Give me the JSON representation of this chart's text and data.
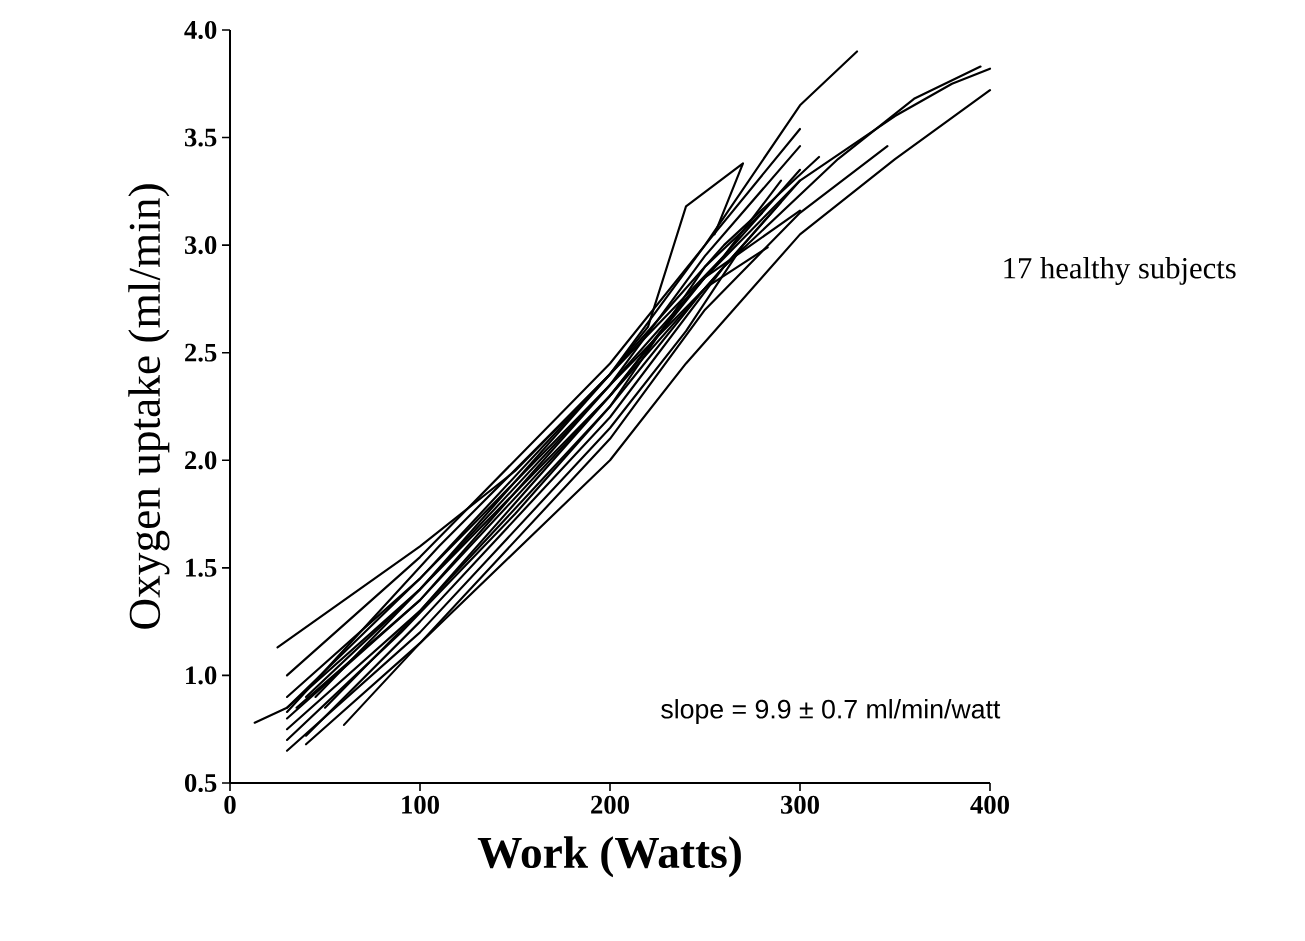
{
  "chart_data": {
    "type": "line",
    "xlabel": "Work (Watts)",
    "ylabel": "Oxygen uptake (ml/min)",
    "annotations": [
      "17 healthy subjects",
      "slope = 9.9 ± 0.7 ml/min/watt"
    ],
    "xlim": [
      0,
      400
    ],
    "ylim": [
      0.5,
      4.0
    ],
    "xticks": [
      0,
      100,
      200,
      300,
      400
    ],
    "yticks": [
      {
        "value": 0.5,
        "label": "0.5"
      },
      {
        "value": 1.0,
        "label": "1.0"
      },
      {
        "value": 1.5,
        "label": "1.5"
      },
      {
        "value": 2.0,
        "label": "2.0"
      },
      {
        "value": 2.5,
        "label": "2.5"
      },
      {
        "value": 3.0,
        "label": "3.0"
      },
      {
        "value": 3.5,
        "label": "3.5"
      },
      {
        "value": 4.0,
        "label": "4.0"
      }
    ],
    "series": [
      {
        "color": "#000000",
        "x": [
          25,
          100,
          150,
          200,
          250,
          300,
          330
        ],
        "values": [
          1.13,
          1.6,
          1.95,
          2.4,
          3.0,
          3.65,
          3.9
        ]
      },
      {
        "color": "#000000",
        "x": [
          30,
          100,
          200,
          220,
          240,
          270,
          255
        ],
        "values": [
          0.9,
          1.45,
          2.4,
          2.62,
          3.18,
          3.38,
          3.05
        ]
      },
      {
        "color": "#000000",
        "x": [
          30,
          100,
          200,
          250,
          300
        ],
        "values": [
          1.0,
          1.55,
          2.45,
          3.0,
          3.54
        ]
      },
      {
        "color": "#000000",
        "x": [
          30,
          100,
          200,
          250,
          300
        ],
        "values": [
          0.85,
          1.45,
          2.35,
          2.95,
          3.46
        ]
      },
      {
        "color": "#000000",
        "x": [
          40,
          100,
          200,
          260,
          310
        ],
        "values": [
          0.9,
          1.4,
          2.4,
          3.0,
          3.41
        ]
      },
      {
        "color": "#000000",
        "x": [
          30,
          100,
          200,
          250,
          300,
          350,
          380,
          400
        ],
        "values": [
          0.75,
          1.3,
          2.3,
          2.85,
          3.3,
          3.6,
          3.75,
          3.82
        ]
      },
      {
        "color": "#000000",
        "x": [
          40,
          100,
          200,
          260,
          320,
          360,
          395
        ],
        "values": [
          0.72,
          1.25,
          2.2,
          2.9,
          3.4,
          3.68,
          3.83
        ]
      },
      {
        "color": "#000000",
        "x": [
          40,
          100,
          200,
          240,
          300,
          350,
          400
        ],
        "values": [
          0.68,
          1.15,
          2.0,
          2.45,
          3.05,
          3.4,
          3.72
        ]
      },
      {
        "color": "#000000",
        "x": [
          30,
          100,
          200,
          250,
          300
        ],
        "values": [
          0.8,
          1.35,
          2.35,
          2.85,
          3.16
        ]
      },
      {
        "color": "#000000",
        "x": [
          13,
          30,
          100,
          200,
          250,
          283
        ],
        "values": [
          0.78,
          0.85,
          1.4,
          2.3,
          2.8,
          2.99
        ]
      },
      {
        "color": "#000000",
        "x": [
          60,
          100,
          200,
          250,
          300,
          346
        ],
        "values": [
          0.77,
          1.15,
          2.1,
          2.7,
          3.15,
          3.46
        ]
      },
      {
        "color": "#000000",
        "x": [
          35,
          100,
          200,
          240,
          300
        ],
        "values": [
          0.85,
          1.35,
          2.3,
          2.75,
          3.35
        ]
      },
      {
        "color": "#000000",
        "x": [
          30,
          90,
          150,
          200,
          250,
          280
        ],
        "values": [
          0.7,
          1.2,
          1.75,
          2.25,
          2.9,
          3.15
        ]
      },
      {
        "color": "#000000",
        "x": [
          50,
          100,
          200,
          250,
          290
        ],
        "values": [
          0.85,
          1.3,
          2.25,
          2.8,
          3.2
        ]
      },
      {
        "color": "#000000",
        "x": [
          30,
          110,
          200,
          260,
          290
        ],
        "values": [
          0.83,
          1.6,
          2.4,
          2.95,
          3.3
        ]
      },
      {
        "color": "#000000",
        "x": [
          45,
          100,
          200,
          250,
          300
        ],
        "values": [
          0.9,
          1.4,
          2.35,
          2.8,
          3.3
        ]
      },
      {
        "color": "#000000",
        "x": [
          30,
          100,
          200,
          240,
          270
        ],
        "values": [
          0.65,
          1.2,
          2.15,
          2.6,
          3.0
        ]
      }
    ]
  }
}
